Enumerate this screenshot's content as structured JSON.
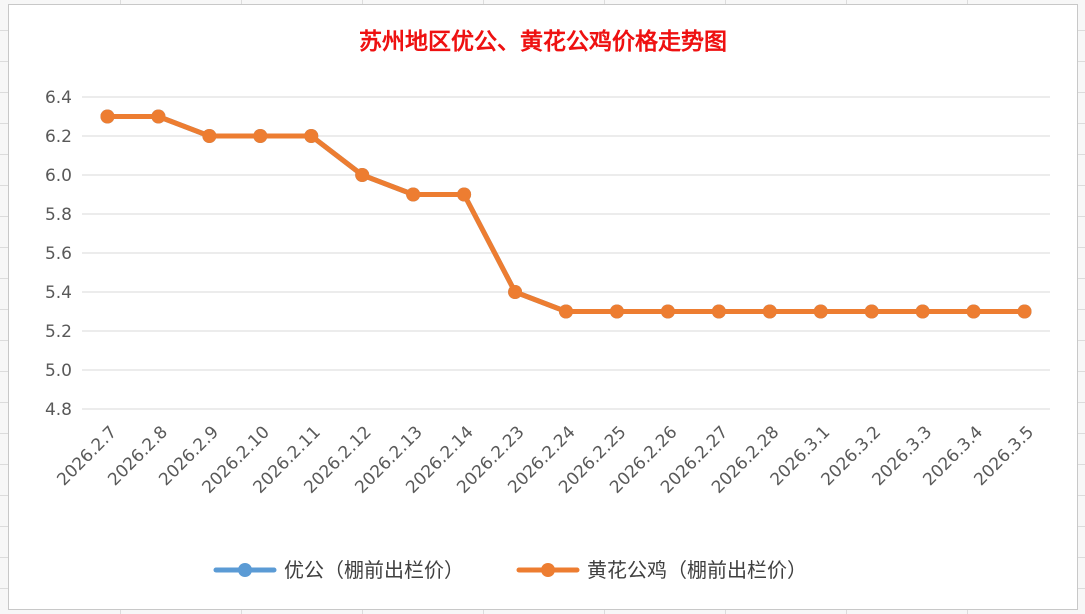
{
  "chart_data": {
    "type": "line",
    "title": "苏州地区优公、黄花公鸡价格走势图",
    "xlabel": "",
    "ylabel": "",
    "x": [
      "2026.2.7",
      "2026.2.8",
      "2026.2.9",
      "2026.2.10",
      "2026.2.11",
      "2026.2.12",
      "2026.2.13",
      "2026.2.14",
      "2026.2.23",
      "2026.2.24",
      "2026.2.25",
      "2026.2.26",
      "2026.2.27",
      "2026.2.28",
      "2026.3.1",
      "2026.3.2",
      "2026.3.3",
      "2026.3.4",
      "2026.3.5"
    ],
    "ylim": [
      4.8,
      6.4
    ],
    "yticks": [
      "4.8",
      "5.0",
      "5.2",
      "5.4",
      "5.6",
      "5.8",
      "6.0",
      "6.2",
      "6.4"
    ],
    "grid": true,
    "legend_position": "bottom",
    "series": [
      {
        "name": "优公（棚前出栏价）",
        "color": "#5b9bd5",
        "values": [
          6.3,
          6.3,
          6.2,
          6.2,
          6.2,
          6.0,
          5.9,
          5.9,
          5.4,
          5.3,
          5.3,
          5.3,
          5.3,
          5.3,
          5.3,
          5.3,
          5.3,
          5.3,
          5.3
        ]
      },
      {
        "name": "黄花公鸡（棚前出栏价）",
        "color": "#ed7d31",
        "values": [
          6.3,
          6.3,
          6.2,
          6.2,
          6.2,
          6.0,
          5.9,
          5.9,
          5.4,
          5.3,
          5.3,
          5.3,
          5.3,
          5.3,
          5.3,
          5.3,
          5.3,
          5.3,
          5.3
        ]
      }
    ]
  }
}
